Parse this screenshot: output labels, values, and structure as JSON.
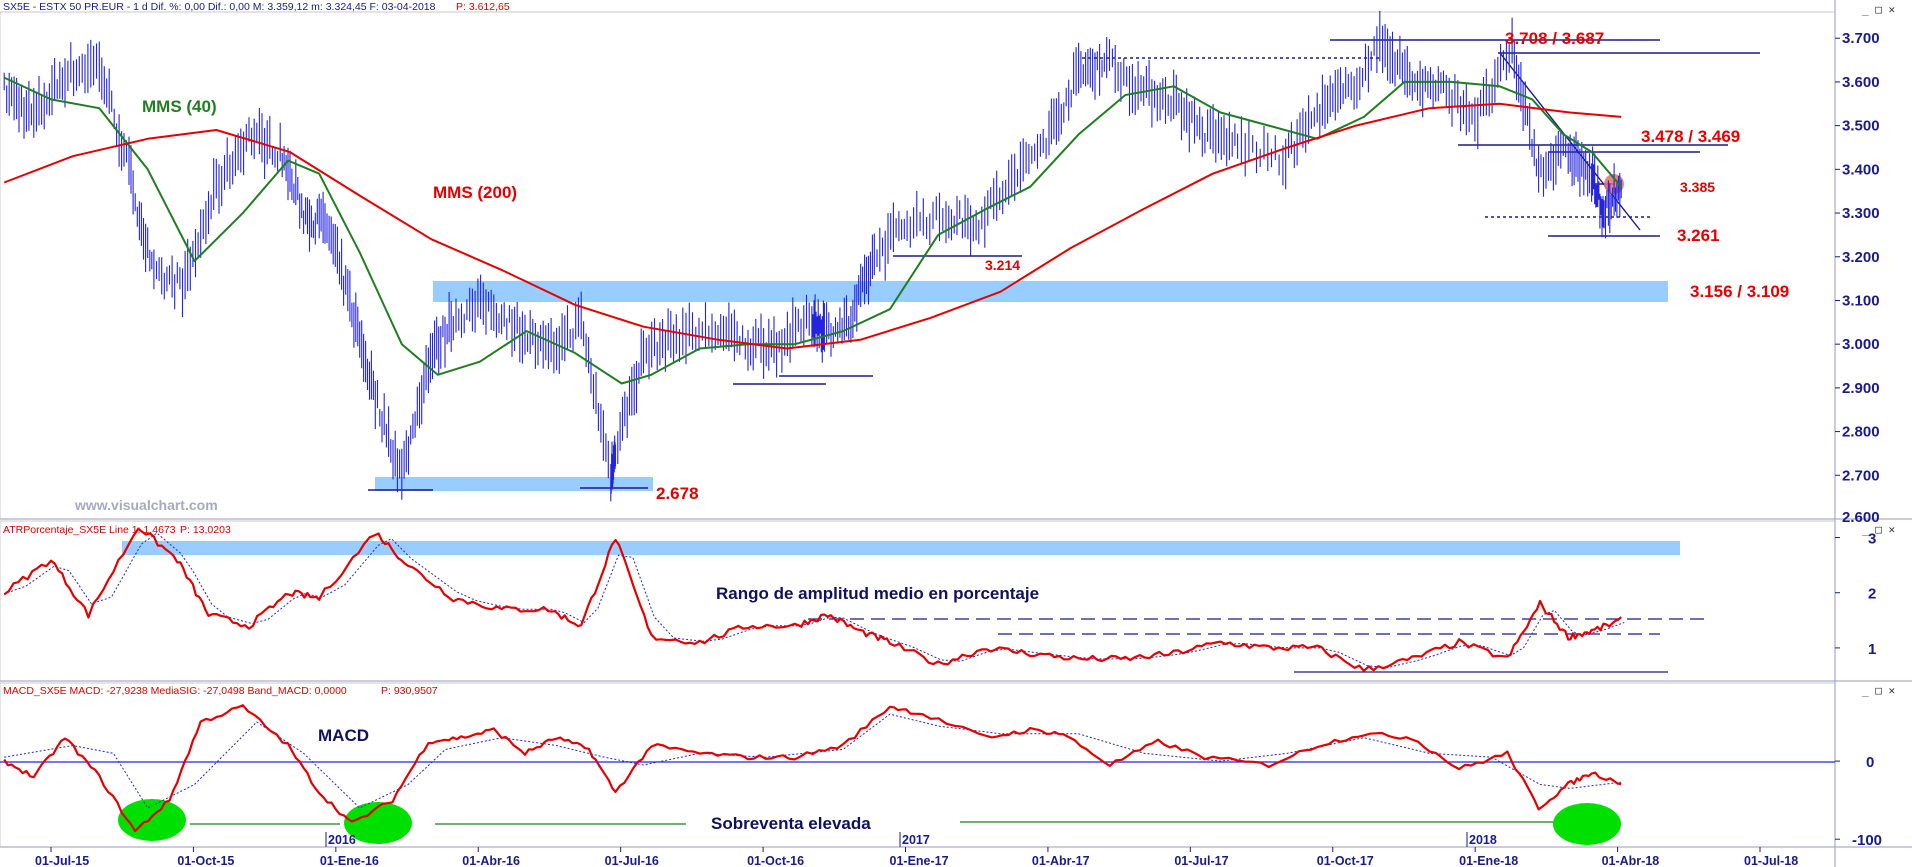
{
  "headers": {
    "price": "SX5E - ESTX 50 PR.EUR -  1 d  Dif. %: 0,00  Dif.: 0,00  M: 3.359,12  m: 3.324,45  F: 03-04-2018",
    "price_extra": "P: 3.612,65",
    "atr": "ATRPorcentaje_SX5E  Line 1: 1,4673",
    "atr_extra": "P: 13,0203",
    "macd": "MACD_SX5E  MACD: -27,9238  MediaSIG: -27,0498  Band_MACD: 0,0000",
    "macd_extra": "P: 930,9507"
  },
  "panel_buttons": "_ □ ✕",
  "watermark": "www.visualchart.com",
  "chart_data": [
    {
      "type": "line",
      "panel": "price",
      "ylim": [
        2600,
        3760
      ],
      "y_ticks": [
        2700,
        2800,
        2900,
        3000,
        3100,
        3200,
        3300,
        3400,
        3500,
        3600,
        3700
      ],
      "y_tick_labels": [
        "2.700",
        "2.800",
        "2.900",
        "3.000",
        "3.100",
        "3.200",
        "3.300",
        "3.400",
        "3.500",
        "3.600",
        "3.700"
      ],
      "y_tick_partial": "2.600",
      "x_ticks": [
        "01-Jul-15",
        "01-Oct-15",
        "01-Ene-16",
        "01-Abr-16",
        "01-Jul-16",
        "01-Oct-16",
        "01-Ene-17",
        "01-Abr-17",
        "01-Jul-17",
        "01-Oct-17",
        "01-Ene-18",
        "01-Abr-18",
        "01-Jul-18"
      ],
      "year_labels": [
        "2016",
        "2017",
        "2018"
      ],
      "series": [
        {
          "name": "SX5E",
          "color": "#2323e0",
          "x": [
            "2015-06-01",
            "2015-06-20",
            "2015-07-10",
            "2015-08-01",
            "2015-08-20",
            "2015-09-05",
            "2015-09-25",
            "2015-10-15",
            "2015-11-05",
            "2015-11-25",
            "2015-12-10",
            "2015-12-25",
            "2016-01-10",
            "2016-01-25",
            "2016-02-11",
            "2016-02-28",
            "2016-03-15",
            "2016-04-05",
            "2016-04-25",
            "2016-05-15",
            "2016-06-05",
            "2016-06-24",
            "2016-06-27",
            "2016-07-15",
            "2016-08-05",
            "2016-08-30",
            "2016-09-20",
            "2016-10-10",
            "2016-10-31",
            "2016-11-08",
            "2016-11-25",
            "2016-12-10",
            "2016-12-31",
            "2017-01-25",
            "2017-02-15",
            "2017-03-10",
            "2017-04-01",
            "2017-04-20",
            "2017-05-08",
            "2017-05-30",
            "2017-06-20",
            "2017-07-10",
            "2017-07-31",
            "2017-08-29",
            "2017-09-20",
            "2017-10-10",
            "2017-11-01",
            "2017-11-20",
            "2017-12-10",
            "2018-01-01",
            "2018-01-23",
            "2018-02-09",
            "2018-02-28",
            "2018-03-15",
            "2018-03-23",
            "2018-04-03"
          ],
          "values": [
            3580,
            3520,
            3620,
            3640,
            3400,
            3150,
            3140,
            3360,
            3480,
            3440,
            3300,
            3270,
            3080,
            2880,
            2700,
            2960,
            3060,
            3090,
            3040,
            2980,
            3050,
            2700,
            2760,
            2980,
            3020,
            3030,
            3000,
            3000,
            3060,
            3030,
            3050,
            3200,
            3280,
            3290,
            3280,
            3380,
            3480,
            3620,
            3650,
            3580,
            3560,
            3480,
            3460,
            3420,
            3530,
            3580,
            3690,
            3600,
            3580,
            3520,
            3670,
            3400,
            3440,
            3380,
            3300,
            3350
          ]
        },
        {
          "name": "MMS (40)",
          "color": "#1f7f1f",
          "x": [
            "2015-06-01",
            "2015-07-01",
            "2015-08-01",
            "2015-09-01",
            "2015-10-01",
            "2015-11-01",
            "2015-11-30",
            "2015-12-20",
            "2016-01-15",
            "2016-02-11",
            "2016-03-05",
            "2016-04-01",
            "2016-05-01",
            "2016-06-01",
            "2016-07-01",
            "2016-07-20",
            "2016-08-20",
            "2016-09-20",
            "2016-10-20",
            "2016-11-20",
            "2016-12-20",
            "2017-01-20",
            "2017-02-20",
            "2017-03-20",
            "2017-04-20",
            "2017-05-20",
            "2017-06-20",
            "2017-07-20",
            "2017-08-20",
            "2017-09-20",
            "2017-10-20",
            "2017-11-15",
            "2017-12-15",
            "2018-01-15",
            "2018-02-05",
            "2018-02-25",
            "2018-03-15",
            "2018-04-03"
          ],
          "values": [
            3610,
            3560,
            3540,
            3400,
            3190,
            3300,
            3420,
            3390,
            3210,
            3000,
            2930,
            2960,
            3030,
            2980,
            2910,
            2930,
            2990,
            3000,
            3000,
            3030,
            3080,
            3250,
            3310,
            3360,
            3480,
            3570,
            3590,
            3530,
            3500,
            3470,
            3520,
            3600,
            3600,
            3590,
            3560,
            3480,
            3440,
            3360
          ]
        },
        {
          "name": "MMS (200)",
          "color": "#e60000",
          "x": [
            "2015-06-01",
            "2015-07-15",
            "2015-09-01",
            "2015-10-15",
            "2015-12-01",
            "2016-01-15",
            "2016-03-01",
            "2016-04-15",
            "2016-06-01",
            "2016-07-15",
            "2016-09-01",
            "2016-10-15",
            "2016-12-01",
            "2017-01-15",
            "2017-03-01",
            "2017-04-15",
            "2017-06-01",
            "2017-07-15",
            "2017-09-01",
            "2017-10-15",
            "2017-12-01",
            "2018-01-15",
            "2018-03-01",
            "2018-04-03"
          ],
          "values": [
            3370,
            3430,
            3470,
            3490,
            3440,
            3340,
            3240,
            3170,
            3090,
            3040,
            3010,
            2990,
            3010,
            3060,
            3120,
            3220,
            3310,
            3390,
            3450,
            3500,
            3540,
            3550,
            3530,
            3520
          ]
        }
      ],
      "annotations": [
        "3.708 / 3.687",
        "3.478 / 3.469",
        "3.385",
        "3.261",
        "3.214",
        "3.156 / 3.109",
        "2.678",
        "MMS (40)",
        "MMS (200)"
      ],
      "support_zones": [
        [
          3109,
          3156
        ],
        [
          2678,
          2710
        ]
      ],
      "levels": [
        2678,
        3214,
        3261,
        3385,
        3469,
        3478,
        3687,
        3708
      ]
    },
    {
      "type": "line",
      "panel": "atr",
      "title": "Rango de amplitud medio en porcentaje",
      "ylim": [
        0.4,
        3.3
      ],
      "y_ticks": [
        1,
        2,
        3
      ],
      "y_tick_labels": [
        "1",
        "2",
        "3"
      ],
      "series": [
        {
          "name": "ATRPorcentaje_SX5E",
          "color": "#e60000",
          "x": [
            "2015-06-01",
            "2015-07-01",
            "2015-07-25",
            "2015-08-26",
            "2015-09-20",
            "2015-10-10",
            "2015-11-05",
            "2015-12-01",
            "2015-12-20",
            "2016-01-25",
            "2016-02-15",
            "2016-03-15",
            "2016-04-15",
            "2016-05-15",
            "2016-06-05",
            "2016-06-27",
            "2016-07-20",
            "2016-08-20",
            "2016-09-20",
            "2016-10-20",
            "2016-11-10",
            "2016-12-01",
            "2016-12-20",
            "2017-01-20",
            "2017-02-20",
            "2017-03-20",
            "2017-04-20",
            "2017-05-20",
            "2017-06-20",
            "2017-07-20",
            "2017-08-20",
            "2017-09-20",
            "2017-10-20",
            "2017-11-20",
            "2017-12-20",
            "2018-01-20",
            "2018-02-10",
            "2018-02-28",
            "2018-03-15",
            "2018-04-03"
          ],
          "values": [
            2.0,
            2.6,
            1.6,
            3.2,
            2.6,
            1.6,
            1.4,
            2.0,
            1.9,
            3.1,
            2.5,
            1.9,
            1.7,
            1.7,
            1.4,
            3.0,
            1.2,
            1.1,
            1.4,
            1.4,
            1.6,
            1.3,
            1.1,
            0.7,
            1.0,
            0.9,
            0.8,
            0.8,
            0.9,
            1.1,
            1.0,
            1.0,
            0.6,
            0.8,
            1.1,
            0.8,
            1.8,
            1.2,
            1.3,
            1.5
          ]
        }
      ],
      "levels": [
        1.3,
        1.6,
        0.55
      ]
    },
    {
      "type": "line",
      "panel": "macd",
      "title": "MACD",
      "annotation": "Sobreventa elevada",
      "ylim": [
        -110,
        100
      ],
      "y_ticks": [
        0,
        -100
      ],
      "y_tick_labels": [
        "0",
        "-100"
      ],
      "series": [
        {
          "name": "MACD",
          "color": "#e60000",
          "x": [
            "2015-06-01",
            "2015-06-20",
            "2015-07-10",
            "2015-08-01",
            "2015-08-24",
            "2015-09-15",
            "2015-10-05",
            "2015-11-01",
            "2015-11-30",
            "2015-12-20",
            "2016-01-10",
            "2016-02-05",
            "2016-02-28",
            "2016-03-20",
            "2016-04-10",
            "2016-04-30",
            "2016-05-20",
            "2016-06-10",
            "2016-06-27",
            "2016-07-20",
            "2016-08-20",
            "2016-09-20",
            "2016-10-20",
            "2016-11-20",
            "2016-12-20",
            "2017-01-10",
            "2017-02-20",
            "2017-03-20",
            "2017-04-10",
            "2017-05-10",
            "2017-06-10",
            "2017-07-10",
            "2017-08-20",
            "2017-09-20",
            "2017-10-20",
            "2017-11-20",
            "2017-12-20",
            "2018-01-20",
            "2018-02-09",
            "2018-02-28",
            "2018-03-15",
            "2018-04-03"
          ],
          "values": [
            0,
            -20,
            30,
            -20,
            -90,
            -50,
            50,
            70,
            20,
            -40,
            -80,
            -50,
            25,
            30,
            40,
            10,
            30,
            15,
            -40,
            20,
            10,
            5,
            5,
            20,
            70,
            60,
            30,
            40,
            35,
            -5,
            25,
            5,
            -5,
            20,
            35,
            30,
            -10,
            10,
            -60,
            -30,
            -15,
            -28
          ]
        },
        {
          "name": "MediaSIG",
          "color": "#2323e0",
          "x": [
            "2015-06-01",
            "2015-07-15",
            "2015-08-10",
            "2015-09-01",
            "2015-10-01",
            "2015-11-10",
            "2015-12-10",
            "2016-01-15",
            "2016-02-15",
            "2016-03-10",
            "2016-04-15",
            "2016-05-20",
            "2016-06-20",
            "2016-07-15",
            "2016-08-20",
            "2016-10-01",
            "2016-11-20",
            "2016-12-20",
            "2017-01-20",
            "2017-03-01",
            "2017-04-20",
            "2017-06-01",
            "2017-07-20",
            "2017-09-01",
            "2017-10-20",
            "2017-12-01",
            "2018-01-10",
            "2018-02-10",
            "2018-03-01",
            "2018-04-03"
          ],
          "values": [
            5,
            20,
            10,
            -60,
            -30,
            50,
            10,
            -60,
            -30,
            15,
            30,
            20,
            5,
            -5,
            10,
            5,
            15,
            60,
            45,
            35,
            35,
            10,
            0,
            10,
            30,
            10,
            5,
            -30,
            -35,
            -27
          ]
        }
      ],
      "ellipses": [
        "2015-09",
        "2016-02",
        "2018-03"
      ]
    }
  ]
}
